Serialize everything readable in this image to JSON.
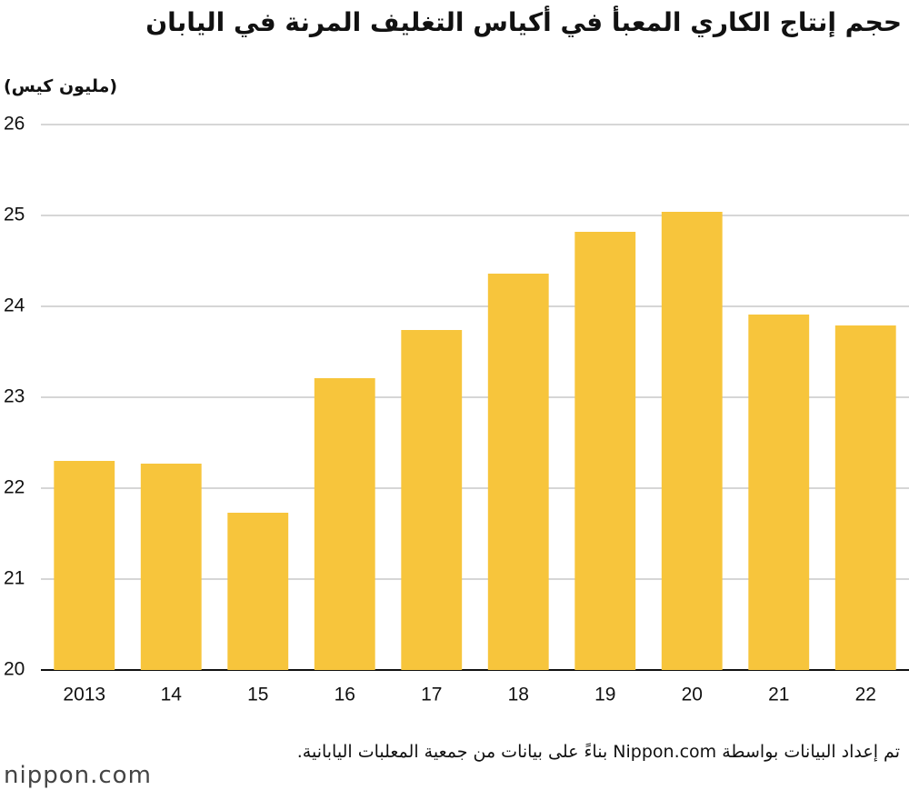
{
  "chart_data": {
    "type": "bar",
    "title": "حجم إنتاج الكاري المعبأ في أكياس التغليف المرنة في اليابان",
    "y_label": "(مليون كيس)",
    "categories": [
      "2013",
      "14",
      "15",
      "16",
      "17",
      "18",
      "19",
      "20",
      "21",
      "22"
    ],
    "values": [
      22.3,
      22.27,
      21.73,
      23.21,
      23.74,
      24.36,
      24.82,
      25.04,
      23.91,
      23.79
    ],
    "color": "#f7c53c",
    "ylim": [
      20,
      26
    ],
    "yticks": [
      20,
      21,
      22,
      23,
      24,
      25,
      26
    ],
    "grid": true,
    "source": "تم إعداد البيانات بواسطة Nippon.com بناءً على بيانات من جمعية المعلبات اليابانية.",
    "logo": "nippon.com"
  }
}
